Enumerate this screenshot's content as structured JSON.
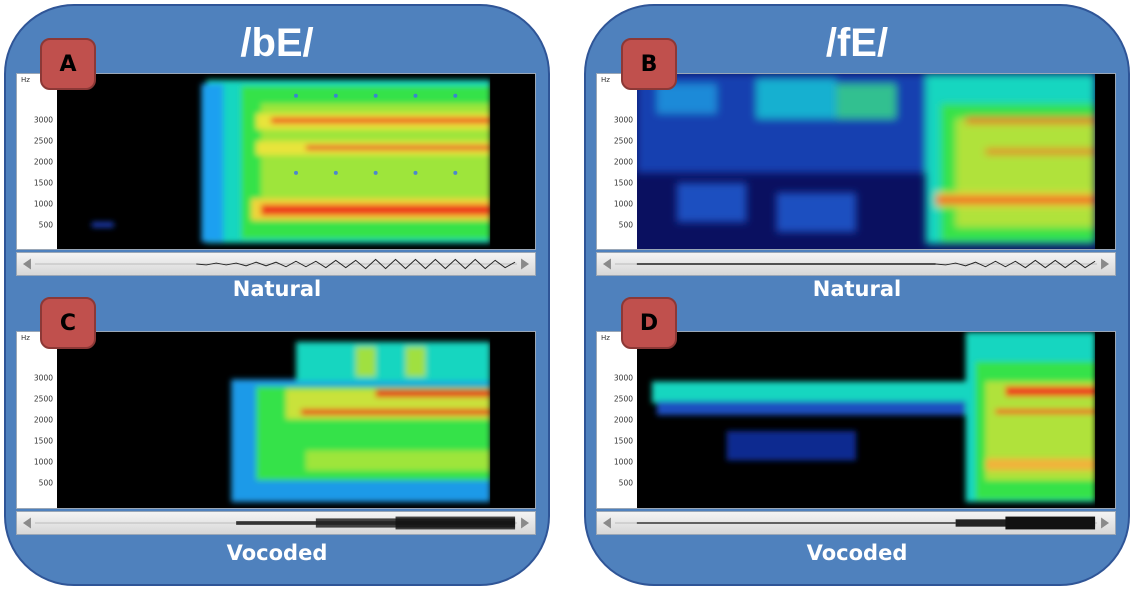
{
  "panels": [
    {
      "title": "/bE/",
      "natural_caption": "Natural",
      "vocoded_caption": "Vocoded"
    },
    {
      "title": "/fE/",
      "natural_caption": "Natural",
      "vocoded_caption": "Vocoded"
    }
  ],
  "badges": {
    "a": "A",
    "b": "B",
    "c": "C",
    "d": "D"
  },
  "axis": {
    "unit": "Hz",
    "ticks": [
      "3000",
      "2500",
      "2000",
      "1500",
      "1000",
      "500"
    ]
  },
  "colors": {
    "panel_fill": "#4f81bd",
    "panel_border": "#2f5597",
    "badge_fill": "#c0504d",
    "text": "#ffffff"
  }
}
